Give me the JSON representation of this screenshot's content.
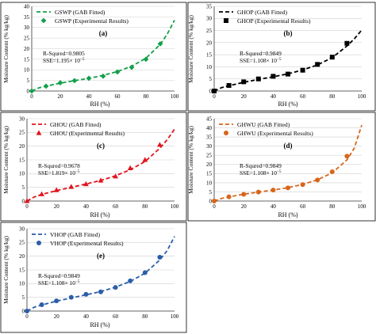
{
  "figure": {
    "shared_ylabel": "Moisture Content (% kg/kg)",
    "sse_exponent": "−5"
  },
  "chart_data": [
    {
      "panel_label": "(a)",
      "type": "line",
      "xlabel": "RH (%)",
      "xlim": [
        0,
        100
      ],
      "ylim": [
        0,
        40
      ],
      "xticks": [
        0,
        20,
        40,
        60,
        80,
        100
      ],
      "yticks": [
        0,
        5,
        10,
        15,
        20,
        25,
        30,
        35,
        40
      ],
      "color": "#12a04a",
      "marker": "diamond",
      "legend_line": "GSWP (GAB Fitted)",
      "legend_marker": "GSWP (Experimental Results)",
      "r_squared_text": "R-Squred=0.9805",
      "sse_text": "SSE=1.195× 10",
      "series": [
        {
          "name": "GSWP (Experimental Results)",
          "kind": "scatter",
          "x": [
            0,
            10,
            20,
            30,
            40,
            50,
            60,
            70,
            80,
            90
          ],
          "y": [
            0,
            2.3,
            3.9,
            4.9,
            6.0,
            7.0,
            9.0,
            11.2,
            15.0,
            22.3
          ]
        },
        {
          "name": "GSWP (GAB Fitted)",
          "kind": "dashed-line",
          "x": [
            0,
            5,
            10,
            20,
            30,
            40,
            50,
            60,
            70,
            80,
            90,
            95,
            100
          ],
          "y": [
            0,
            1.5,
            2.3,
            3.7,
            4.9,
            6.0,
            7.4,
            9.2,
            11.7,
            15.5,
            22.0,
            27.0,
            33.5
          ]
        }
      ]
    },
    {
      "panel_label": "(b)",
      "type": "line",
      "xlabel": "RH (%)",
      "xlim": [
        0,
        100
      ],
      "ylim": [
        0,
        35
      ],
      "xticks": [
        0,
        20,
        40,
        60,
        80,
        100
      ],
      "yticks": [
        0,
        5,
        10,
        15,
        20,
        25,
        30,
        35
      ],
      "color": "#000000",
      "marker": "square",
      "legend_line": "GHOP (GAB Fitted)",
      "legend_marker": "GHOP (Experimental Results)",
      "r_squared_text": "R-Squred=0.9849",
      "sse_text": "SSE=1.108× 10",
      "series": [
        {
          "name": "GHOP (Experimental Results)",
          "kind": "scatter",
          "x": [
            0,
            10,
            20,
            30,
            40,
            50,
            60,
            70,
            80,
            90
          ],
          "y": [
            0,
            2.3,
            3.8,
            5.0,
            6.1,
            7.0,
            8.6,
            11.0,
            14.0,
            19.7
          ]
        },
        {
          "name": "GHOP (GAB Fitted)",
          "kind": "dashed-line",
          "x": [
            0,
            5,
            10,
            20,
            30,
            40,
            50,
            60,
            70,
            80,
            90,
            95,
            100
          ],
          "y": [
            0,
            1.4,
            2.2,
            3.6,
            4.8,
            5.9,
            7.1,
            8.7,
            10.8,
            13.8,
            18.6,
            21.6,
            25.2
          ]
        }
      ]
    },
    {
      "panel_label": "(c)",
      "type": "line",
      "xlabel": "RH (%)",
      "xlim": [
        0,
        100
      ],
      "ylim": [
        0,
        30
      ],
      "xticks": [
        0,
        20,
        40,
        60,
        80,
        100
      ],
      "yticks": [
        0,
        5,
        10,
        15,
        20,
        25,
        30
      ],
      "color": "#e0141e",
      "marker": "triangle",
      "legend_line": "GHOU (GAB Fitted)",
      "legend_marker": "GHOU (Experimental Results)",
      "r_squared_text": "R-Squred=0.9678",
      "sse_text": "SSE=1.819× 10",
      "series": [
        {
          "name": "GHOU (Experimental Results)",
          "kind": "scatter",
          "x": [
            0,
            10,
            20,
            30,
            40,
            50,
            60,
            70,
            80,
            90
          ],
          "y": [
            0,
            2.5,
            4.0,
            5.2,
            6.2,
            7.5,
            9.0,
            12.0,
            15.0,
            20.5
          ]
        },
        {
          "name": "GHOU (GAB Fitted)",
          "kind": "dashed-line",
          "x": [
            0,
            5,
            10,
            20,
            30,
            40,
            50,
            60,
            70,
            80,
            90,
            95,
            100
          ],
          "y": [
            0,
            1.5,
            2.4,
            3.8,
            5.0,
            6.2,
            7.5,
            9.2,
            11.4,
            14.4,
            19.2,
            22.3,
            26.2
          ]
        }
      ]
    },
    {
      "panel_label": "(d)",
      "type": "line",
      "xlabel": "RH (%)",
      "xlim": [
        0,
        100
      ],
      "ylim": [
        0,
        45
      ],
      "xticks": [
        0,
        20,
        40,
        60,
        80,
        100
      ],
      "yticks": [
        0,
        5,
        10,
        15,
        20,
        25,
        30,
        35,
        40,
        45
      ],
      "color": "#d8661c",
      "marker": "circle",
      "legend_line": "GHWU (GAB Fitted)",
      "legend_marker": "GHWU (Experimental Results)",
      "r_squared_text": "R-Squred=0.9849",
      "sse_text": "SSE=1.108× 10",
      "series": [
        {
          "name": "GHWU (Experimental Results)",
          "kind": "scatter",
          "x": [
            0,
            10,
            20,
            30,
            40,
            50,
            60,
            70,
            80,
            90
          ],
          "y": [
            0,
            2.3,
            3.7,
            4.9,
            6.0,
            7.2,
            9.0,
            11.5,
            16.0,
            24.5
          ]
        },
        {
          "name": "GHWU (GAB Fitted)",
          "kind": "dashed-line",
          "x": [
            0,
            5,
            10,
            20,
            30,
            40,
            50,
            60,
            70,
            80,
            90,
            95,
            100
          ],
          "y": [
            0,
            1.4,
            2.3,
            3.7,
            4.9,
            6.0,
            7.3,
            9.1,
            11.6,
            15.4,
            22.5,
            29.0,
            41.5
          ]
        }
      ]
    },
    {
      "panel_label": "(e)",
      "type": "line",
      "xlabel": "RH (%)",
      "xlim": [
        0,
        100
      ],
      "ylim": [
        0,
        30
      ],
      "xticks": [
        0,
        20,
        40,
        60,
        80,
        100
      ],
      "yticks": [
        0,
        5,
        10,
        15,
        20,
        25,
        30
      ],
      "color": "#2b5ea8",
      "marker": "circle",
      "legend_line": "VHOP (GAB Fitted)",
      "legend_marker": "VHOP (Experimental Results)",
      "r_squared_text": "R-Squred=0.9849",
      "sse_text": "SSE=1.108× 10",
      "series": [
        {
          "name": "VHOP (Experimental Results)",
          "kind": "scatter",
          "x": [
            0,
            10,
            20,
            30,
            40,
            50,
            60,
            70,
            80,
            90
          ],
          "y": [
            0,
            2.3,
            3.7,
            5.0,
            6.1,
            7.0,
            8.6,
            11.0,
            14.0,
            19.6
          ]
        },
        {
          "name": "VHOP (GAB Fitted)",
          "kind": "dashed-line",
          "x": [
            0,
            5,
            10,
            20,
            30,
            40,
            50,
            60,
            70,
            80,
            90,
            95,
            100
          ],
          "y": [
            0,
            1.4,
            2.2,
            3.6,
            4.8,
            5.9,
            7.1,
            8.7,
            10.8,
            13.8,
            18.6,
            22.0,
            27.2
          ]
        }
      ]
    }
  ]
}
